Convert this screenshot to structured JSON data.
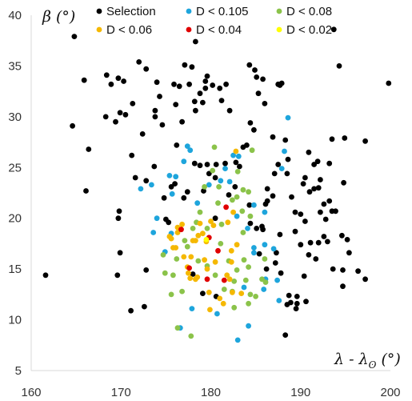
{
  "chart_data": {
    "type": "scatter",
    "xlabel": "λ - λ",
    "xlabel_sub": "ʘ",
    "xlabel_unit": " (°)",
    "ylabel": "β (°)",
    "xlim": [
      160,
      200
    ],
    "ylim": [
      5,
      40
    ],
    "x_ticks": [
      160,
      170,
      180,
      190,
      200
    ],
    "y_ticks": [
      5,
      10,
      15,
      20,
      25,
      30,
      35,
      40
    ],
    "grid": false,
    "legend_position": "top",
    "series": [
      {
        "name": "Selection",
        "color": "#000000",
        "points": [
          [
            164.8,
            37.9
          ],
          [
            165.9,
            33.6
          ],
          [
            164.6,
            29.1
          ],
          [
            166.4,
            26.8
          ],
          [
            166.1,
            22.7
          ],
          [
            161.6,
            14.4
          ],
          [
            168.4,
            34.1
          ],
          [
            168.9,
            33.2
          ],
          [
            169.7,
            33.8
          ],
          [
            170.3,
            33.5
          ],
          [
            169.9,
            30.4
          ],
          [
            168.3,
            30.0
          ],
          [
            169.4,
            29.5
          ],
          [
            170.5,
            30.2
          ],
          [
            169.8,
            20.7
          ],
          [
            169.7,
            20.0
          ],
          [
            169.9,
            16.6
          ],
          [
            169.6,
            14.4
          ],
          [
            171.3,
            31.3
          ],
          [
            172.0,
            35.4
          ],
          [
            172.8,
            34.7
          ],
          [
            171.2,
            26.2
          ],
          [
            172.4,
            28.3
          ],
          [
            171.6,
            24.0
          ],
          [
            172.8,
            23.7
          ],
          [
            171.1,
            10.9
          ],
          [
            172.6,
            11.3
          ],
          [
            172.8,
            14.9
          ],
          [
            174.0,
            33.4
          ],
          [
            173.8,
            30.6
          ],
          [
            174.3,
            32.0
          ],
          [
            174.6,
            29.2
          ],
          [
            173.7,
            25.1
          ],
          [
            174.8,
            22.0
          ],
          [
            175.0,
            19.9
          ],
          [
            175.3,
            19.6
          ],
          [
            175.9,
            33.2
          ],
          [
            176.1,
            31.2
          ],
          [
            177.1,
            35.1
          ],
          [
            176.5,
            33.0
          ],
          [
            176.8,
            29.5
          ],
          [
            176.2,
            27.2
          ],
          [
            177.6,
            33.2
          ],
          [
            177.9,
            34.9
          ],
          [
            176.0,
            23.4
          ],
          [
            175.6,
            23.1
          ],
          [
            177.0,
            22.0
          ],
          [
            177.4,
            22.6
          ],
          [
            178.3,
            37.4
          ],
          [
            178.2,
            31.5
          ],
          [
            178.8,
            32.3
          ],
          [
            179.4,
            32.8
          ],
          [
            179.4,
            33.5
          ],
          [
            179.6,
            34.0
          ],
          [
            180.2,
            33.1
          ],
          [
            178.3,
            30.6
          ],
          [
            179.1,
            31.4
          ],
          [
            178.2,
            25.4
          ],
          [
            178.8,
            25.2
          ],
          [
            179.6,
            25.3
          ],
          [
            179.8,
            24.4
          ],
          [
            179.2,
            22.7
          ],
          [
            180.5,
            24.0
          ],
          [
            180.6,
            25.3
          ],
          [
            180.5,
            20.0
          ],
          [
            179.1,
            12.6
          ],
          [
            181.0,
            32.8
          ],
          [
            181.7,
            33.2
          ],
          [
            181.2,
            31.6
          ],
          [
            182.1,
            30.6
          ],
          [
            182.7,
            23.1
          ],
          [
            181.6,
            25.4
          ],
          [
            182.0,
            22.3
          ],
          [
            183.6,
            27.0
          ],
          [
            183.2,
            25.1
          ],
          [
            182.8,
            25.5
          ],
          [
            184.3,
            35.1
          ],
          [
            185.1,
            33.9
          ],
          [
            185.3,
            32.3
          ],
          [
            184.9,
            34.6
          ],
          [
            185.8,
            33.7
          ],
          [
            186.0,
            31.3
          ],
          [
            184.4,
            29.4
          ],
          [
            184.0,
            27.2
          ],
          [
            184.8,
            28.7
          ],
          [
            184.3,
            21.3
          ],
          [
            184.4,
            19.5
          ],
          [
            185.1,
            19.0
          ],
          [
            185.7,
            19.2
          ],
          [
            185.8,
            18.9
          ],
          [
            185.4,
            16.5
          ],
          [
            186.2,
            15.0
          ],
          [
            187.2,
            15.6
          ],
          [
            187.7,
            33.1
          ],
          [
            187.5,
            33.2
          ],
          [
            187.9,
            33.3
          ],
          [
            186.9,
            28.0
          ],
          [
            187.5,
            25.3
          ],
          [
            188.6,
            25.8
          ],
          [
            187.1,
            24.4
          ],
          [
            188.3,
            27.7
          ],
          [
            188.5,
            24.4
          ],
          [
            186.9,
            22.2
          ],
          [
            186.3,
            22.9
          ],
          [
            186.1,
            21.4
          ],
          [
            186.3,
            21.7
          ],
          [
            187.7,
            18.4
          ],
          [
            187.3,
            16.6
          ],
          [
            187.8,
            14.6
          ],
          [
            188.5,
            11.5
          ],
          [
            188.9,
            11.7
          ],
          [
            188.3,
            8.5
          ],
          [
            189.5,
            11.1
          ],
          [
            189.6,
            11.6
          ],
          [
            189.6,
            12.3
          ],
          [
            190.6,
            11.8
          ],
          [
            190.4,
            14.3
          ],
          [
            190.0,
            17.4
          ],
          [
            189.4,
            18.7
          ],
          [
            189.4,
            20.6
          ],
          [
            189.0,
            22.1
          ],
          [
            190.0,
            20.4
          ],
          [
            190.5,
            19.7
          ],
          [
            190.5,
            24.0
          ],
          [
            190.3,
            23.4
          ],
          [
            191.0,
            22.6
          ],
          [
            191.5,
            25.3
          ],
          [
            191.9,
            25.6
          ],
          [
            190.9,
            26.5
          ],
          [
            191.5,
            22.9
          ],
          [
            192.0,
            23.0
          ],
          [
            192.2,
            23.8
          ],
          [
            193.2,
            25.4
          ],
          [
            192.2,
            20.6
          ],
          [
            192.6,
            21.4
          ],
          [
            193.2,
            21.7
          ],
          [
            192.8,
            19.9
          ],
          [
            193.0,
            17.7
          ],
          [
            192.0,
            17.6
          ],
          [
            191.1,
            17.6
          ],
          [
            192.6,
            18.2
          ],
          [
            194.6,
            18.3
          ],
          [
            195.2,
            17.9
          ],
          [
            193.5,
            20.7
          ],
          [
            193.9,
            20.7
          ],
          [
            194.8,
            23.5
          ],
          [
            193.5,
            27.8
          ],
          [
            194.9,
            27.9
          ],
          [
            193.6,
            15.0
          ],
          [
            194.7,
            14.9
          ],
          [
            195.4,
            16.6
          ],
          [
            194.7,
            13.3
          ],
          [
            196.4,
            14.8
          ],
          [
            197.2,
            14.0
          ],
          [
            197.2,
            27.6
          ],
          [
            194.3,
            35.0
          ],
          [
            193.7,
            38.6
          ],
          [
            199.8,
            33.3
          ],
          [
            188.7,
            12.4
          ],
          [
            190.9,
            16.4
          ],
          [
            191.7,
            16.0
          ],
          [
            178.0,
            14.5
          ],
          [
            180.6,
            12.3
          ],
          [
            173.8,
            30.0
          ]
        ]
      },
      {
        "name": "D < 0.105",
        "color": "#1EA5DC",
        "points": [
          [
            172.2,
            22.9
          ],
          [
            173.4,
            23.3
          ],
          [
            174.0,
            20.0
          ],
          [
            175.4,
            24.2
          ],
          [
            175.7,
            22.4
          ],
          [
            175.6,
            18.5
          ],
          [
            174.9,
            16.7
          ],
          [
            177.0,
            25.6
          ],
          [
            177.4,
            27.1
          ],
          [
            177.7,
            26.7
          ],
          [
            178.5,
            21.5
          ],
          [
            177.9,
            11.1
          ],
          [
            179.8,
            23.3
          ],
          [
            181.1,
            23.7
          ],
          [
            181.6,
            24.9
          ],
          [
            182.5,
            26.2
          ],
          [
            183.1,
            26.1
          ],
          [
            182.1,
            23.6
          ],
          [
            182.9,
            20.2
          ],
          [
            184.1,
            19.0
          ],
          [
            184.8,
            16.6
          ],
          [
            184.8,
            21.3
          ],
          [
            186.0,
            17.4
          ],
          [
            186.1,
            14.0
          ],
          [
            185.9,
            13.0
          ],
          [
            187.0,
            17.0
          ],
          [
            187.4,
            13.9
          ],
          [
            187.9,
            24.9
          ],
          [
            188.6,
            29.9
          ],
          [
            188.2,
            26.6
          ],
          [
            187.6,
            11.9
          ],
          [
            184.2,
            9.4
          ],
          [
            183.0,
            8.0
          ],
          [
            176.6,
            9.2
          ],
          [
            180.7,
            10.6
          ],
          [
            184.8,
            17.1
          ],
          [
            186.0,
            20.6
          ],
          [
            183.7,
            13.2
          ],
          [
            173.6,
            18.6
          ],
          [
            176.1,
            24.1
          ]
        ]
      },
      {
        "name": "D < 0.08",
        "color": "#8BC34A",
        "points": [
          [
            180.4,
            27.0
          ],
          [
            180.2,
            24.7
          ],
          [
            180.9,
            23.1
          ],
          [
            179.3,
            23.1
          ],
          [
            178.8,
            20.6
          ],
          [
            178.4,
            19.6
          ],
          [
            177.1,
            17.8
          ],
          [
            177.4,
            17.2
          ],
          [
            174.7,
            16.4
          ],
          [
            174.9,
            14.6
          ],
          [
            175.8,
            14.4
          ],
          [
            176.2,
            16.0
          ],
          [
            176.8,
            12.8
          ],
          [
            176.3,
            9.2
          ],
          [
            177.8,
            8.4
          ],
          [
            178.0,
            19.0
          ],
          [
            179.6,
            19.0
          ],
          [
            181.2,
            19.4
          ],
          [
            181.1,
            17.5
          ],
          [
            182.4,
            21.8
          ],
          [
            182.9,
            22.1
          ],
          [
            183.6,
            22.8
          ],
          [
            184.2,
            22.6
          ],
          [
            184.6,
            26.7
          ],
          [
            183.5,
            20.7
          ],
          [
            184.4,
            20.2
          ],
          [
            183.6,
            18.6
          ],
          [
            183.7,
            15.9
          ],
          [
            184.2,
            15.2
          ],
          [
            183.9,
            13.9
          ],
          [
            184.4,
            12.5
          ],
          [
            185.0,
            12.3
          ],
          [
            185.7,
            14.0
          ],
          [
            186.1,
            13.7
          ],
          [
            186.0,
            16.0
          ],
          [
            182.9,
            14.9
          ],
          [
            182.6,
            13.8
          ],
          [
            182.4,
            12.8
          ],
          [
            181.5,
            13.0
          ],
          [
            180.5,
            14.4
          ],
          [
            179.6,
            15.3
          ],
          [
            178.6,
            15.8
          ],
          [
            182.6,
            11.2
          ],
          [
            184.2,
            11.6
          ],
          [
            180.8,
            21.5
          ],
          [
            183.0,
            24.6
          ],
          [
            175.6,
            12.5
          ],
          [
            182.0,
            15.8
          ]
        ]
      },
      {
        "name": "D < 0.06",
        "color": "#F5B800",
        "points": [
          [
            175.4,
            18.2
          ],
          [
            175.6,
            18.0
          ],
          [
            175.8,
            17.1
          ],
          [
            176.1,
            17.1
          ],
          [
            176.3,
            19.1
          ],
          [
            176.8,
            19.4
          ],
          [
            177.0,
            16.2
          ],
          [
            177.5,
            14.6
          ],
          [
            177.4,
            15.2
          ],
          [
            177.8,
            16.2
          ],
          [
            177.7,
            14.1
          ],
          [
            178.3,
            14.0
          ],
          [
            178.5,
            14.2
          ],
          [
            178.3,
            17.8
          ],
          [
            178.6,
            18.3
          ],
          [
            178.8,
            19.5
          ],
          [
            179.1,
            18.5
          ],
          [
            179.5,
            17.7
          ],
          [
            180.0,
            19.7
          ],
          [
            180.3,
            19.3
          ],
          [
            179.3,
            15.9
          ],
          [
            179.6,
            15.0
          ],
          [
            179.8,
            12.7
          ],
          [
            179.9,
            11.0
          ],
          [
            181.0,
            12.1
          ],
          [
            181.4,
            11.6
          ],
          [
            181.8,
            14.4
          ],
          [
            182.1,
            14.0
          ],
          [
            182.4,
            12.7
          ],
          [
            182.3,
            15.7
          ],
          [
            182.3,
            16.8
          ],
          [
            182.9,
            17.4
          ],
          [
            181.9,
            19.6
          ],
          [
            182.5,
            20.6
          ],
          [
            182.8,
            26.6
          ],
          [
            183.4,
            12.6
          ],
          [
            176.3,
            18.6
          ],
          [
            178.0,
            17.8
          ],
          [
            180.5,
            15.7
          ]
        ]
      },
      {
        "name": "D < 0.04",
        "color": "#E00000",
        "points": [
          [
            176.7,
            18.9
          ],
          [
            177.6,
            15.1
          ],
          [
            179.8,
            18.1
          ],
          [
            181.7,
            21.1
          ],
          [
            180.8,
            16.8
          ],
          [
            179.6,
            14.0
          ],
          [
            181.5,
            13.9
          ]
        ]
      },
      {
        "name": "D < 0.02",
        "color": "#FFFF00",
        "points": [
          [
            179.5,
            17.9
          ]
        ]
      }
    ]
  }
}
